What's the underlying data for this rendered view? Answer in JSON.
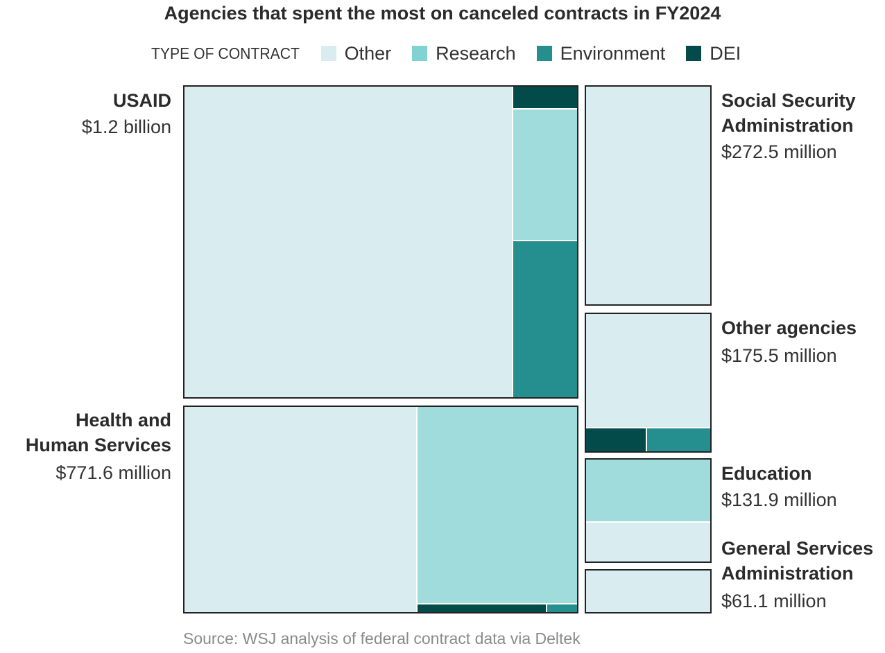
{
  "chart_data": {
    "type": "treemap",
    "title": "Agencies that spent the most on canceled contracts in FY2024",
    "legend": {
      "heading": "TYPE OF CONTRACT",
      "placement": "top",
      "items": [
        {
          "name": "Other",
          "color": "#d9ecef"
        },
        {
          "name": "Research",
          "color": "#a0dcdb"
        },
        {
          "name": "Environment",
          "color": "#258e8f"
        },
        {
          "name": "DEI",
          "color": "#034b4b"
        }
      ]
    },
    "agencies": [
      {
        "name": "USAID",
        "amount": "$1.2 billion",
        "value_millions": 1200,
        "breakdown": {
          "Other": 0.835,
          "Research": 0.055,
          "Environment": 0.075,
          "DEI": 0.035
        }
      },
      {
        "name": "Health and Human Services",
        "amount": "$771.6 million",
        "value_millions": 771.6,
        "breakdown": {
          "Other": 0.59,
          "Research": 0.38,
          "Environment": 0.007,
          "DEI": 0.023
        }
      },
      {
        "name": "Social Security Administration",
        "amount": "$272.5 million",
        "value_millions": 272.5,
        "breakdown": {
          "Other": 1.0,
          "Research": 0,
          "Environment": 0,
          "DEI": 0
        }
      },
      {
        "name": "Other agencies",
        "amount": "$175.5 million",
        "value_millions": 175.5,
        "breakdown": {
          "Other": 0.8,
          "Research": 0,
          "Environment": 0.1,
          "DEI": 0.1
        }
      },
      {
        "name": "Education",
        "amount": "$131.9 million",
        "value_millions": 131.9,
        "breakdown": {
          "Other": 0.38,
          "Research": 0.62,
          "Environment": 0,
          "DEI": 0
        }
      },
      {
        "name": "General Services Administration",
        "amount": "$61.1 million",
        "value_millions": 61.1,
        "breakdown": {
          "Other": 1.0,
          "Research": 0,
          "Environment": 0,
          "DEI": 0
        }
      }
    ],
    "source": "Source: WSJ analysis of federal contract data via Deltek"
  },
  "labels": {
    "usaid": {
      "name": "USAID",
      "amount": "$1.2 billion"
    },
    "hhs": {
      "name_line1": "Health and",
      "name_line2": "Human Services",
      "amount": "$771.6 million"
    },
    "ssa": {
      "name_line1": "Social Security",
      "name_line2": "Administration",
      "amount": "$272.5 million"
    },
    "other": {
      "name": "Other agencies",
      "amount": "$175.5 million"
    },
    "education": {
      "name": "Education",
      "amount": "$131.9 million"
    },
    "gsa": {
      "name_line1": "General Services",
      "name_line2": "Administration",
      "amount": "$61.1 million"
    }
  }
}
